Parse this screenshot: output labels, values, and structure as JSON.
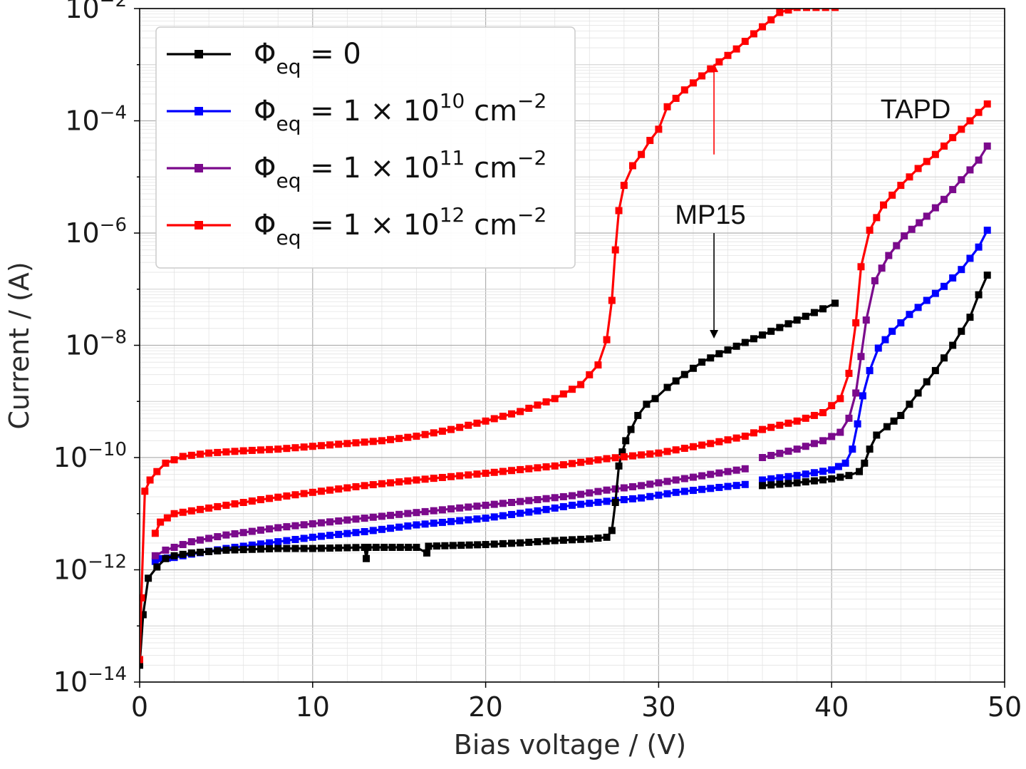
{
  "chart_data": {
    "type": "line",
    "title": "",
    "xlabel": "Bias voltage / (V)",
    "ylabel": "Current / (A)",
    "xlim": [
      0,
      50
    ],
    "ylim_log10": [
      -14,
      -2
    ],
    "y_scale": "log",
    "grid": true,
    "minor_grid": true,
    "x_ticks": [
      {
        "value": 0,
        "label": "0"
      },
      {
        "value": 10,
        "label": "10"
      },
      {
        "value": 20,
        "label": "20"
      },
      {
        "value": 30,
        "label": "30"
      },
      {
        "value": 40,
        "label": "40"
      },
      {
        "value": 50,
        "label": "50"
      }
    ],
    "y_ticks": [
      {
        "exp": -2,
        "base": "10",
        "sup": "−2"
      },
      {
        "exp": -4,
        "base": "10",
        "sup": "−4"
      },
      {
        "exp": -6,
        "base": "10",
        "sup": "−6"
      },
      {
        "exp": -8,
        "base": "10",
        "sup": "−8"
      },
      {
        "exp": -10,
        "base": "10",
        "sup": "−10"
      },
      {
        "exp": -12,
        "base": "10",
        "sup": "−12"
      },
      {
        "exp": -14,
        "base": "10",
        "sup": "−14"
      }
    ],
    "legend_position": "top-left",
    "series": [
      {
        "name": "Φeq = 0",
        "legend": {
          "sym": "Φ",
          "sub": "eq",
          "eq": " = 0",
          "sup": "",
          "unit": ""
        },
        "color": "#000000",
        "group": "MP15",
        "points": [
          [
            0,
            -13.7
          ],
          [
            0.2,
            -12.8
          ],
          [
            0.5,
            -12.15
          ],
          [
            1,
            -11.95
          ],
          [
            1.5,
            -11.8
          ],
          [
            2,
            -11.75
          ],
          [
            3,
            -11.7
          ],
          [
            5,
            -11.65
          ],
          [
            8,
            -11.62
          ],
          [
            10,
            -11.62
          ],
          [
            13,
            -11.6
          ],
          [
            13.1,
            -11.8
          ],
          [
            13.2,
            -11.6
          ],
          [
            16,
            -11.6
          ],
          [
            16.6,
            -11.7
          ],
          [
            16.7,
            -11.58
          ],
          [
            20,
            -11.55
          ],
          [
            22,
            -11.52
          ],
          [
            24,
            -11.48
          ],
          [
            26,
            -11.45
          ],
          [
            27,
            -11.42
          ],
          [
            27.3,
            -11.3
          ],
          [
            27.5,
            -10.8
          ],
          [
            27.7,
            -10.15
          ],
          [
            27.9,
            -9.9
          ],
          [
            28.1,
            -9.7
          ],
          [
            28.4,
            -9.5
          ],
          [
            28.8,
            -9.25
          ],
          [
            29.3,
            -9.05
          ],
          [
            29.8,
            -8.95
          ],
          [
            30.5,
            -8.75
          ],
          [
            31.5,
            -8.52
          ],
          [
            32.5,
            -8.3
          ],
          [
            33.5,
            -8.15
          ],
          [
            35,
            -7.95
          ],
          [
            36.5,
            -7.75
          ],
          [
            38,
            -7.55
          ],
          [
            39.5,
            -7.35
          ],
          [
            40.2,
            -7.25
          ]
        ]
      },
      {
        "name": "Φeq = 0",
        "legend": {
          "sym": "Φ",
          "sub": "eq",
          "eq": " = 0",
          "sup": "",
          "unit": ""
        },
        "color": "#000000",
        "group": "TAPD",
        "points": [
          [
            36,
            -10.5
          ],
          [
            38,
            -10.45
          ],
          [
            40,
            -10.38
          ],
          [
            41,
            -10.32
          ],
          [
            41.6,
            -10.25
          ],
          [
            41.9,
            -10.1
          ],
          [
            42.2,
            -9.85
          ],
          [
            42.6,
            -9.6
          ],
          [
            43.2,
            -9.45
          ],
          [
            44,
            -9.25
          ],
          [
            45,
            -8.85
          ],
          [
            46,
            -8.45
          ],
          [
            47,
            -8.0
          ],
          [
            48,
            -7.5
          ],
          [
            48.5,
            -7.1
          ],
          [
            49,
            -6.75
          ]
        ]
      },
      {
        "name": "Φeq = 1 × 10^10 cm^-2",
        "legend": {
          "sym": "Φ",
          "sub": "eq",
          "eq": " = 1 × 10",
          "sup": "10",
          "unit": " cm",
          "unit_sup": "−2"
        },
        "color": "#0000ff",
        "group": "MP15",
        "points": [
          [
            0.9,
            -11.85
          ],
          [
            1.2,
            -11.8
          ],
          [
            2,
            -11.78
          ],
          [
            3,
            -11.72
          ],
          [
            5,
            -11.62
          ],
          [
            8,
            -11.5
          ],
          [
            10,
            -11.42
          ],
          [
            13,
            -11.32
          ],
          [
            16,
            -11.2
          ],
          [
            20,
            -11.08
          ],
          [
            23,
            -10.95
          ],
          [
            25,
            -10.85
          ],
          [
            27,
            -10.78
          ],
          [
            29,
            -10.72
          ],
          [
            31,
            -10.62
          ],
          [
            33,
            -10.55
          ],
          [
            35,
            -10.48
          ]
        ]
      },
      {
        "name": "Φeq = 1 × 10^10 cm^-2",
        "legend": {
          "sym": "Φ",
          "sub": "eq",
          "eq": " = 1 × 10",
          "sup": "10",
          "unit": " cm",
          "unit_sup": "−2"
        },
        "color": "#0000ff",
        "group": "TAPD",
        "points": [
          [
            36,
            -10.4
          ],
          [
            38,
            -10.32
          ],
          [
            40,
            -10.22
          ],
          [
            40.8,
            -10.1
          ],
          [
            41.2,
            -9.85
          ],
          [
            41.5,
            -9.4
          ],
          [
            41.8,
            -8.9
          ],
          [
            42.2,
            -8.45
          ],
          [
            42.7,
            -8.05
          ],
          [
            43.5,
            -7.75
          ],
          [
            44.5,
            -7.45
          ],
          [
            45.5,
            -7.2
          ],
          [
            46.5,
            -6.95
          ],
          [
            47.5,
            -6.65
          ],
          [
            48.5,
            -6.25
          ],
          [
            49,
            -5.95
          ]
        ]
      },
      {
        "name": "Φeq = 1 × 10^11 cm^-2",
        "legend": {
          "sym": "Φ",
          "sub": "eq",
          "eq": " = 1 × 10",
          "sup": "11",
          "unit": " cm",
          "unit_sup": "−2"
        },
        "color": "#7b0a8c",
        "group": "MP15",
        "points": [
          [
            0.9,
            -11.75
          ],
          [
            1.5,
            -11.65
          ],
          [
            3,
            -11.5
          ],
          [
            5,
            -11.38
          ],
          [
            8,
            -11.25
          ],
          [
            10,
            -11.18
          ],
          [
            13,
            -11.08
          ],
          [
            16,
            -10.98
          ],
          [
            20,
            -10.85
          ],
          [
            23,
            -10.75
          ],
          [
            25,
            -10.68
          ],
          [
            27,
            -10.58
          ],
          [
            29,
            -10.5
          ],
          [
            31,
            -10.4
          ],
          [
            33,
            -10.3
          ],
          [
            35,
            -10.2
          ]
        ]
      },
      {
        "name": "Φeq = 1 × 10^11 cm^-2",
        "legend": {
          "sym": "Φ",
          "sub": "eq",
          "eq": " = 1 × 10",
          "sup": "11",
          "unit": " cm",
          "unit_sup": "−2"
        },
        "color": "#7b0a8c",
        "group": "TAPD",
        "points": [
          [
            36,
            -10.0
          ],
          [
            38,
            -9.85
          ],
          [
            39.5,
            -9.7
          ],
          [
            40.5,
            -9.55
          ],
          [
            41,
            -9.3
          ],
          [
            41.4,
            -8.85
          ],
          [
            41.7,
            -8.2
          ],
          [
            42,
            -7.55
          ],
          [
            42.5,
            -6.85
          ],
          [
            43.3,
            -6.4
          ],
          [
            44.2,
            -6.05
          ],
          [
            45.5,
            -5.7
          ],
          [
            46.5,
            -5.4
          ],
          [
            47.5,
            -5.05
          ],
          [
            48.5,
            -4.7
          ],
          [
            49,
            -4.45
          ]
        ]
      },
      {
        "name": "Φeq = 1 × 10^12 cm^-2",
        "legend": {
          "sym": "Φ",
          "sub": "eq",
          "eq": " = 1 × 10",
          "sup": "12",
          "unit": " cm",
          "unit_sup": "−2"
        },
        "color": "#ff0000",
        "group": "MP15",
        "points": [
          [
            0,
            -13.6
          ],
          [
            0.1,
            -12.5
          ],
          [
            0.3,
            -10.6
          ],
          [
            0.6,
            -10.4
          ],
          [
            1,
            -10.25
          ],
          [
            1.5,
            -10.1
          ],
          [
            2.5,
            -9.98
          ],
          [
            4,
            -9.92
          ],
          [
            6,
            -9.88
          ],
          [
            8,
            -9.85
          ],
          [
            10,
            -9.8
          ],
          [
            12,
            -9.75
          ],
          [
            14,
            -9.7
          ],
          [
            16,
            -9.62
          ],
          [
            18,
            -9.5
          ],
          [
            20,
            -9.35
          ],
          [
            22,
            -9.18
          ],
          [
            24,
            -8.95
          ],
          [
            25.5,
            -8.7
          ],
          [
            26.5,
            -8.35
          ],
          [
            27,
            -7.9
          ],
          [
            27.3,
            -7.2
          ],
          [
            27.5,
            -6.3
          ],
          [
            27.7,
            -5.6
          ],
          [
            28,
            -5.15
          ],
          [
            28.5,
            -4.8
          ],
          [
            29,
            -4.6
          ],
          [
            29.5,
            -4.35
          ],
          [
            30,
            -4.15
          ],
          [
            30.5,
            -3.75
          ],
          [
            31.5,
            -3.45
          ],
          [
            32.5,
            -3.2
          ],
          [
            33.5,
            -2.95
          ],
          [
            34.5,
            -2.72
          ],
          [
            35.5,
            -2.45
          ],
          [
            36.5,
            -2.2
          ],
          [
            37,
            -2.07
          ],
          [
            38,
            -1.98
          ],
          [
            40.2,
            -1.98
          ]
        ]
      },
      {
        "name": "Φeq = 1 × 10^12 cm^-2",
        "legend": {
          "sym": "Φ",
          "sub": "eq",
          "eq": " = 1 × 10",
          "sup": "12",
          "unit": " cm",
          "unit_sup": "−2"
        },
        "color": "#ff0000",
        "group": "TAPD",
        "points": [
          [
            0.9,
            -11.35
          ],
          [
            1.2,
            -11.15
          ],
          [
            2,
            -11.0
          ],
          [
            4,
            -10.9
          ],
          [
            7,
            -10.75
          ],
          [
            10,
            -10.62
          ],
          [
            13,
            -10.5
          ],
          [
            16,
            -10.4
          ],
          [
            20,
            -10.28
          ],
          [
            24,
            -10.15
          ],
          [
            27,
            -10.02
          ],
          [
            30,
            -9.92
          ],
          [
            33,
            -9.75
          ],
          [
            35,
            -9.62
          ],
          [
            36,
            -9.5
          ],
          [
            38,
            -9.35
          ],
          [
            39.5,
            -9.2
          ],
          [
            40.5,
            -8.95
          ],
          [
            41,
            -8.5
          ],
          [
            41.4,
            -7.6
          ],
          [
            41.7,
            -6.6
          ],
          [
            42.2,
            -5.95
          ],
          [
            43,
            -5.5
          ],
          [
            44,
            -5.15
          ],
          [
            45,
            -4.85
          ],
          [
            46,
            -4.6
          ],
          [
            47,
            -4.3
          ],
          [
            48,
            -4.0
          ],
          [
            49,
            -3.7
          ]
        ]
      }
    ],
    "annotations": [
      {
        "text": "MP15",
        "color": "#000000"
      },
      {
        "text": "TAPD",
        "color": "#000000"
      }
    ],
    "arrows": [
      {
        "x": 33.2,
        "from_exp": -6.0,
        "to_exp": -7.88,
        "color": "#000000"
      },
      {
        "x": 33.2,
        "from_exp": -4.6,
        "to_exp": -2.98,
        "color": "#ff0000"
      }
    ]
  }
}
